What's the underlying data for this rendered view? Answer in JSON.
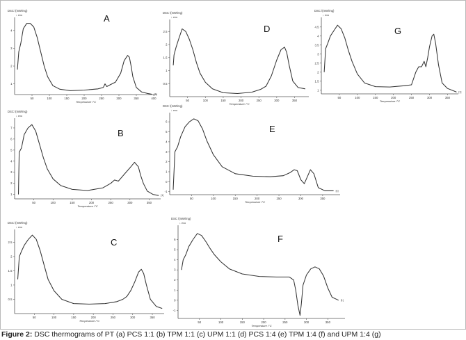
{
  "caption": {
    "label": "Figure 2:",
    "text": " DSC thermograms of PT (a) PCS 1:1 (b) TPM 1:1 (c) UPM 1:1 (d) PCS 1:4 (e) TPM 1:4 (f) and UPM 1:4 (g)"
  },
  "colors": {
    "line": "#333333",
    "axis": "#555555",
    "text": "#333333"
  },
  "chart_data": [
    {
      "type": "line",
      "letter": "A",
      "title": "DSC /(mW/mg)",
      "exo": "↓ exo",
      "xlabel": "Temperature /°C",
      "end_label": "[1]",
      "xlim": [
        0,
        410
      ],
      "ylim": [
        0.4,
        4.5
      ],
      "xticks": [
        50,
        100,
        150,
        200,
        250,
        300,
        350,
        400
      ],
      "yticks": [
        1,
        2,
        3,
        4
      ],
      "x": [
        8,
        12,
        18,
        25,
        35,
        45,
        55,
        65,
        75,
        85,
        95,
        110,
        130,
        160,
        200,
        240,
        255,
        260,
        265,
        275,
        290,
        305,
        315,
        325,
        330,
        335,
        340,
        350,
        365,
        385,
        395
      ],
      "y": [
        1.8,
        2.8,
        3.3,
        4.1,
        4.4,
        4.4,
        4.2,
        3.6,
        2.8,
        2.0,
        1.4,
        0.9,
        0.7,
        0.62,
        0.65,
        0.72,
        0.8,
        1.0,
        0.85,
        0.95,
        1.1,
        1.6,
        2.3,
        2.6,
        2.5,
        2.0,
        1.4,
        0.8,
        0.55,
        0.45,
        0.42
      ]
    },
    {
      "type": "line",
      "letter": "B",
      "title": "DSC /(mW/mg)",
      "exo": "↓ exo",
      "xlabel": "Temperature /°C",
      "end_label": "[1]",
      "xlim": [
        0,
        380
      ],
      "ylim": [
        0.6,
        7.5
      ],
      "xticks": [
        50,
        100,
        150,
        200,
        250,
        300,
        350
      ],
      "yticks": [
        1,
        2,
        3,
        4,
        5,
        6,
        7
      ],
      "x": [
        10,
        12,
        18,
        25,
        35,
        45,
        55,
        65,
        75,
        85,
        100,
        120,
        150,
        190,
        230,
        250,
        260,
        270,
        285,
        300,
        312,
        322,
        328,
        335,
        345,
        360,
        375
      ],
      "y": [
        1.0,
        4.8,
        5.2,
        6.4,
        7.0,
        7.3,
        6.7,
        5.5,
        4.3,
        3.3,
        2.4,
        1.8,
        1.45,
        1.35,
        1.6,
        2.0,
        2.3,
        2.2,
        2.8,
        3.4,
        3.9,
        3.5,
        2.7,
        2.0,
        1.3,
        1.0,
        0.9
      ]
    },
    {
      "type": "line",
      "letter": "C",
      "title": "DSC /(mW/mg)",
      "exo": "↓ exo",
      "xlabel": "Temperature /°C",
      "end_label": "",
      "xlim": [
        0,
        380
      ],
      "ylim": [
        0.0,
        2.8
      ],
      "xticks": [
        50,
        100,
        150,
        200,
        250,
        300,
        350
      ],
      "yticks": [
        0.5,
        1.0,
        1.5,
        2.0,
        2.5
      ],
      "x": [
        8,
        12,
        18,
        25,
        35,
        45,
        55,
        65,
        75,
        85,
        100,
        120,
        150,
        190,
        230,
        260,
        275,
        285,
        295,
        305,
        315,
        322,
        328,
        335,
        345,
        360,
        375
      ],
      "y": [
        1.2,
        2.0,
        2.2,
        2.4,
        2.6,
        2.75,
        2.6,
        2.2,
        1.7,
        1.2,
        0.8,
        0.5,
        0.35,
        0.33,
        0.35,
        0.42,
        0.5,
        0.6,
        0.8,
        1.1,
        1.45,
        1.55,
        1.4,
        1.0,
        0.5,
        0.25,
        0.18
      ]
    },
    {
      "type": "line",
      "letter": "D",
      "title": "DSC /(mW/mg)",
      "exo": "↓ exo",
      "xlabel": "Temperature /°C",
      "end_label": "",
      "xlim": [
        0,
        390
      ],
      "ylim": [
        0.0,
        2.8
      ],
      "xticks": [
        50,
        100,
        150,
        200,
        250,
        300,
        350
      ],
      "yticks": [
        0.5,
        1.0,
        1.5,
        2.0,
        2.5
      ],
      "x": [
        10,
        12,
        18,
        25,
        35,
        45,
        55,
        65,
        75,
        85,
        100,
        120,
        150,
        190,
        230,
        255,
        270,
        285,
        300,
        312,
        322,
        328,
        335,
        345,
        360,
        380
      ],
      "y": [
        1.2,
        1.6,
        1.9,
        2.2,
        2.6,
        2.5,
        2.2,
        1.8,
        1.3,
        0.9,
        0.55,
        0.3,
        0.15,
        0.12,
        0.17,
        0.28,
        0.4,
        0.8,
        1.4,
        1.8,
        1.9,
        1.7,
        1.2,
        0.6,
        0.35,
        0.3
      ]
    },
    {
      "type": "line",
      "letter": "E",
      "title": "DSC /(mW/mg)",
      "exo": "↓ exo",
      "xlabel": "Temperature /°C",
      "end_label": "[1]",
      "xlim": [
        0,
        390
      ],
      "ylim": [
        -1.3,
        6.5
      ],
      "xticks": [
        50,
        100,
        150,
        200,
        250,
        300,
        350
      ],
      "yticks": [
        -1,
        0,
        1,
        2,
        3,
        4,
        5,
        6
      ],
      "x": [
        8,
        12,
        18,
        25,
        35,
        45,
        55,
        65,
        75,
        85,
        100,
        120,
        150,
        190,
        230,
        260,
        275,
        285,
        292,
        300,
        308,
        315,
        322,
        330,
        340,
        355,
        375
      ],
      "y": [
        -0.8,
        3.0,
        3.5,
        4.5,
        5.5,
        6.0,
        6.3,
        6.1,
        5.3,
        4.1,
        2.7,
        1.5,
        0.8,
        0.55,
        0.5,
        0.6,
        0.9,
        1.2,
        1.1,
        0.2,
        -0.2,
        0.5,
        1.2,
        0.8,
        -0.6,
        -0.9,
        -0.9
      ]
    },
    {
      "type": "line",
      "letter": "F",
      "title": "DSC /(mW/mg)",
      "exo": "↓ exo",
      "xlabel": "Temperature /°C",
      "end_label": "[1]",
      "xlim": [
        0,
        390
      ],
      "ylim": [
        -1.8,
        7.0
      ],
      "xticks": [
        50,
        100,
        150,
        200,
        250,
        300,
        350
      ],
      "yticks": [
        -1,
        0,
        1,
        2,
        3,
        4,
        5,
        6
      ],
      "x": [
        8,
        12,
        18,
        25,
        35,
        45,
        55,
        65,
        75,
        85,
        100,
        120,
        150,
        190,
        230,
        260,
        270,
        275,
        280,
        285,
        288,
        292,
        300,
        310,
        320,
        330,
        340,
        350,
        360,
        375
      ],
      "y": [
        3.0,
        4.0,
        4.5,
        5.3,
        6.0,
        6.6,
        6.4,
        5.8,
        5.1,
        4.5,
        3.8,
        3.1,
        2.6,
        2.35,
        2.3,
        2.3,
        2.0,
        1.0,
        -0.5,
        -1.5,
        -0.4,
        1.5,
        2.5,
        3.1,
        3.3,
        3.1,
        2.4,
        1.2,
        0.3,
        0.0
      ]
    },
    {
      "type": "line",
      "letter": "G",
      "title": "DSC /(mW/mg)",
      "exo": "↓ exo",
      "xlabel": "Temperature /°C",
      "end_label": "[1]",
      "xlim": [
        0,
        380
      ],
      "ylim": [
        0.8,
        4.8
      ],
      "xticks": [
        50,
        100,
        150,
        200,
        250,
        300,
        350
      ],
      "yticks": [
        1.0,
        1.5,
        2.0,
        2.5,
        3.0,
        3.5,
        4.0,
        4.5
      ],
      "x": [
        8,
        12,
        18,
        25,
        35,
        45,
        55,
        65,
        75,
        85,
        100,
        120,
        150,
        190,
        230,
        250,
        262,
        270,
        278,
        285,
        290,
        295,
        300,
        307,
        312,
        317,
        325,
        335,
        350,
        375
      ],
      "y": [
        2.0,
        3.3,
        3.6,
        4.0,
        4.3,
        4.6,
        4.4,
        3.9,
        3.2,
        2.6,
        1.9,
        1.4,
        1.2,
        1.18,
        1.25,
        1.3,
        2.0,
        2.3,
        2.3,
        2.6,
        2.3,
        2.8,
        3.4,
        4.0,
        4.1,
        3.6,
        2.4,
        1.4,
        1.1,
        0.9
      ]
    }
  ]
}
